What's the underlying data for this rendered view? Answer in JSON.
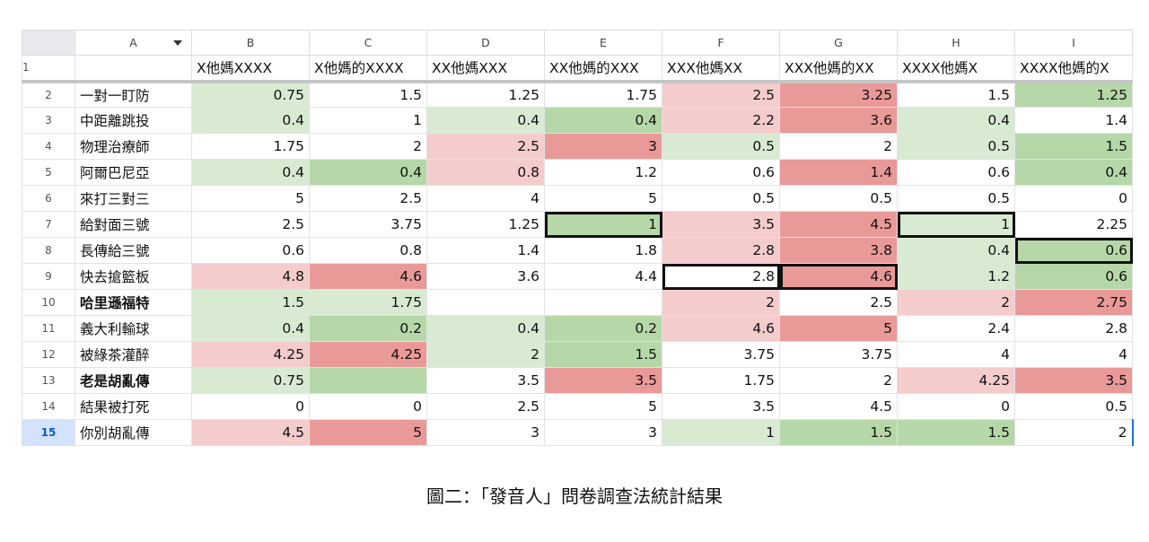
{
  "columns": [
    "A",
    "B",
    "C",
    "D",
    "E",
    "F",
    "G",
    "H",
    "I"
  ],
  "header_row": {
    "num": "1",
    "cells": [
      "",
      "X他媽XXXX",
      "X他媽的XXXX",
      "XX他媽XXX",
      "XX他媽的XXX",
      "XXX他媽XX",
      "XXX他媽的XX",
      "XXXX他媽X",
      "XXXX他媽的X"
    ]
  },
  "rows": [
    {
      "num": "2",
      "label": "一對一盯防",
      "bold": false,
      "cells": [
        {
          "v": "0.75",
          "c": "g1"
        },
        {
          "v": "1.5",
          "c": ""
        },
        {
          "v": "1.25",
          "c": ""
        },
        {
          "v": "1.75",
          "c": ""
        },
        {
          "v": "2.5",
          "c": "r1"
        },
        {
          "v": "3.25",
          "c": "r2"
        },
        {
          "v": "1.5",
          "c": ""
        },
        {
          "v": "1.25",
          "c": "g2"
        }
      ]
    },
    {
      "num": "3",
      "label": "中距離跳投",
      "bold": false,
      "cells": [
        {
          "v": "0.4",
          "c": "g1"
        },
        {
          "v": "1",
          "c": ""
        },
        {
          "v": "0.4",
          "c": "g1"
        },
        {
          "v": "0.4",
          "c": "g2"
        },
        {
          "v": "2.2",
          "c": "r1"
        },
        {
          "v": "3.6",
          "c": "r2"
        },
        {
          "v": "0.4",
          "c": "g1"
        },
        {
          "v": "1.4",
          "c": ""
        }
      ]
    },
    {
      "num": "4",
      "label": "物理治療師",
      "bold": false,
      "cells": [
        {
          "v": "1.75",
          "c": ""
        },
        {
          "v": "2",
          "c": ""
        },
        {
          "v": "2.5",
          "c": "r1"
        },
        {
          "v": "3",
          "c": "r2"
        },
        {
          "v": "0.5",
          "c": "g1"
        },
        {
          "v": "2",
          "c": ""
        },
        {
          "v": "0.5",
          "c": "g1"
        },
        {
          "v": "1.5",
          "c": "g2"
        }
      ]
    },
    {
      "num": "5",
      "label": "阿爾巴尼亞",
      "bold": false,
      "cells": [
        {
          "v": "0.4",
          "c": "g1"
        },
        {
          "v": "0.4",
          "c": "g2"
        },
        {
          "v": "0.8",
          "c": "r1"
        },
        {
          "v": "1.2",
          "c": ""
        },
        {
          "v": "0.6",
          "c": ""
        },
        {
          "v": "1.4",
          "c": "r2"
        },
        {
          "v": "0.6",
          "c": ""
        },
        {
          "v": "0.4",
          "c": "g2"
        }
      ]
    },
    {
      "num": "6",
      "label": "來打三對三",
      "bold": false,
      "cells": [
        {
          "v": "5",
          "c": ""
        },
        {
          "v": "2.5",
          "c": ""
        },
        {
          "v": "4",
          "c": ""
        },
        {
          "v": "5",
          "c": ""
        },
        {
          "v": "0.5",
          "c": ""
        },
        {
          "v": "0.5",
          "c": ""
        },
        {
          "v": "0.5",
          "c": ""
        },
        {
          "v": "0",
          "c": ""
        }
      ]
    },
    {
      "num": "7",
      "label": "給對面三號",
      "bold": false,
      "cells": [
        {
          "v": "2.5",
          "c": ""
        },
        {
          "v": "3.75",
          "c": ""
        },
        {
          "v": "1.25",
          "c": ""
        },
        {
          "v": "1",
          "c": "g2",
          "box": true
        },
        {
          "v": "3.5",
          "c": "r1"
        },
        {
          "v": "4.5",
          "c": "r2"
        },
        {
          "v": "1",
          "c": "g1",
          "box": true
        },
        {
          "v": "2.25",
          "c": ""
        }
      ]
    },
    {
      "num": "8",
      "label": "長傳給三號",
      "bold": false,
      "cells": [
        {
          "v": "0.6",
          "c": ""
        },
        {
          "v": "0.8",
          "c": ""
        },
        {
          "v": "1.4",
          "c": ""
        },
        {
          "v": "1.8",
          "c": ""
        },
        {
          "v": "2.8",
          "c": "r1"
        },
        {
          "v": "3.8",
          "c": "r2"
        },
        {
          "v": "0.4",
          "c": "g1"
        },
        {
          "v": "0.6",
          "c": "g2",
          "box": true
        }
      ]
    },
    {
      "num": "9",
      "label": "快去搶籃板",
      "bold": false,
      "cells": [
        {
          "v": "4.8",
          "c": "r1"
        },
        {
          "v": "4.6",
          "c": "r2"
        },
        {
          "v": "3.6",
          "c": ""
        },
        {
          "v": "4.4",
          "c": ""
        },
        {
          "v": "2.8",
          "c": "",
          "box": true
        },
        {
          "v": "4.6",
          "c": "r2",
          "box": true
        },
        {
          "v": "1.2",
          "c": "g1"
        },
        {
          "v": "0.6",
          "c": "g2"
        }
      ]
    },
    {
      "num": "10",
      "label": "哈里遜福特",
      "bold": true,
      "cells": [
        {
          "v": "1.5",
          "c": "g1"
        },
        {
          "v": "1.75",
          "c": "g1"
        },
        {
          "v": "",
          "c": ""
        },
        {
          "v": "",
          "c": ""
        },
        {
          "v": "2",
          "c": "r1"
        },
        {
          "v": "2.5",
          "c": ""
        },
        {
          "v": "2",
          "c": "r1"
        },
        {
          "v": "2.75",
          "c": "r2"
        }
      ]
    },
    {
      "num": "11",
      "label": "義大利輸球",
      "bold": false,
      "cells": [
        {
          "v": "0.4",
          "c": "g1"
        },
        {
          "v": "0.2",
          "c": "g2"
        },
        {
          "v": "0.4",
          "c": "g1"
        },
        {
          "v": "0.2",
          "c": "g2"
        },
        {
          "v": "4.6",
          "c": "r1"
        },
        {
          "v": "5",
          "c": "r2"
        },
        {
          "v": "2.4",
          "c": ""
        },
        {
          "v": "2.8",
          "c": ""
        }
      ]
    },
    {
      "num": "12",
      "label": "被綠茶灌醉",
      "bold": false,
      "cells": [
        {
          "v": "4.25",
          "c": "r1"
        },
        {
          "v": "4.25",
          "c": "r2"
        },
        {
          "v": "2",
          "c": "g1"
        },
        {
          "v": "1.5",
          "c": "g2"
        },
        {
          "v": "3.75",
          "c": ""
        },
        {
          "v": "3.75",
          "c": ""
        },
        {
          "v": "4",
          "c": ""
        },
        {
          "v": "4",
          "c": ""
        }
      ]
    },
    {
      "num": "13",
      "label": "老是胡亂傳",
      "bold": true,
      "cells": [
        {
          "v": "0.75",
          "c": "g1"
        },
        {
          "v": "",
          "c": "g2"
        },
        {
          "v": "3.5",
          "c": ""
        },
        {
          "v": "3.5",
          "c": "r2"
        },
        {
          "v": "1.75",
          "c": ""
        },
        {
          "v": "2",
          "c": ""
        },
        {
          "v": "4.25",
          "c": "r1"
        },
        {
          "v": "3.5",
          "c": "r2"
        }
      ]
    },
    {
      "num": "14",
      "label": "結果被打死",
      "bold": false,
      "cells": [
        {
          "v": "0",
          "c": ""
        },
        {
          "v": "0",
          "c": ""
        },
        {
          "v": "2.5",
          "c": ""
        },
        {
          "v": "5",
          "c": ""
        },
        {
          "v": "3.5",
          "c": ""
        },
        {
          "v": "4.5",
          "c": ""
        },
        {
          "v": "0",
          "c": ""
        },
        {
          "v": "0.5",
          "c": ""
        }
      ]
    },
    {
      "num": "15",
      "label": "你別胡亂傳",
      "bold": false,
      "selected": true,
      "cells": [
        {
          "v": "4.5",
          "c": "r1"
        },
        {
          "v": "5",
          "c": "r2"
        },
        {
          "v": "3",
          "c": ""
        },
        {
          "v": "3",
          "c": ""
        },
        {
          "v": "1",
          "c": "g1"
        },
        {
          "v": "1.5",
          "c": "g2"
        },
        {
          "v": "1.5",
          "c": "g2"
        },
        {
          "v": "2",
          "c": "",
          "last": true
        }
      ]
    }
  ],
  "colors": {
    "light_green": "#d9ead3",
    "green": "#b6d7a8",
    "light_red": "#f4cccc",
    "red": "#ea9999",
    "selection": "#d3e3fd"
  },
  "icons": {
    "column_a_menu": "dropdown-triangle-icon"
  },
  "caption": "圖二：「發音人」問卷調查法統計結果"
}
